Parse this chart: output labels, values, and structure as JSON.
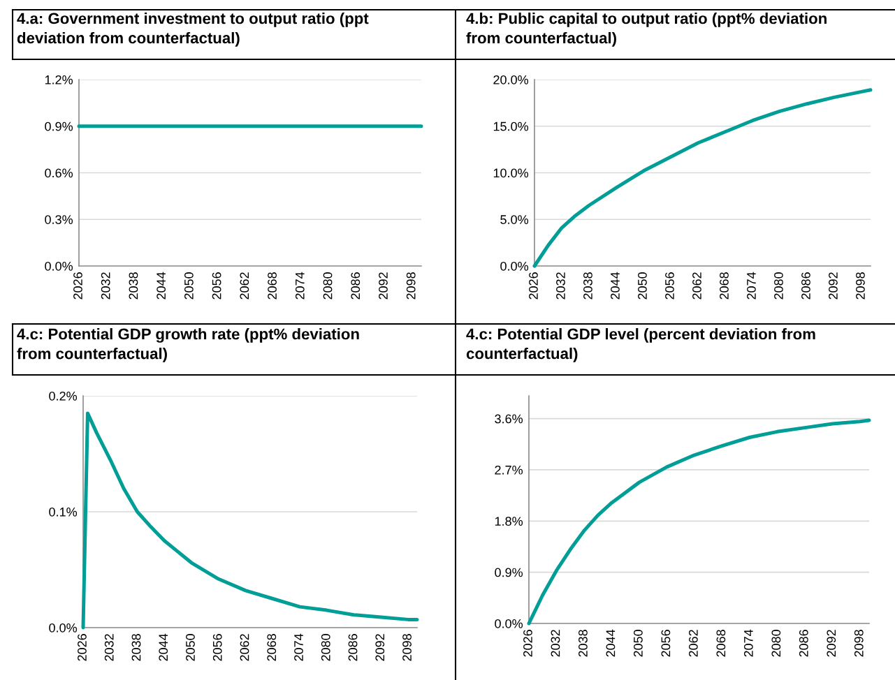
{
  "chart_data": [
    {
      "type": "line",
      "title": "4.a: Government investment to output ratio (ppt\ndeviation from counterfactual)",
      "xlim": [
        2026,
        2100
      ],
      "xticks": [
        2026,
        2032,
        2038,
        2044,
        2050,
        2056,
        2062,
        2068,
        2074,
        2080,
        2086,
        2092,
        2098
      ],
      "ylim": [
        0,
        1.2
      ],
      "yticks": [
        {
          "value": 0,
          "label": "0.0%"
        },
        {
          "value": 0.3,
          "label": "0.3%"
        },
        {
          "value": 0.6,
          "label": "0.6%"
        },
        {
          "value": 0.9,
          "label": "0.9%"
        },
        {
          "value": 1.2,
          "label": "1.2%"
        }
      ],
      "grid": "y",
      "series": [
        {
          "color": "#009e96",
          "x": [
            2026,
            2100
          ],
          "values": [
            0.9,
            0.9
          ]
        }
      ]
    },
    {
      "type": "line",
      "title": "4.b: Public capital to output ratio (ppt% deviation\nfrom counterfactual)",
      "xlim": [
        2026,
        2100
      ],
      "xticks": [
        2026,
        2032,
        2038,
        2044,
        2050,
        2056,
        2062,
        2068,
        2074,
        2080,
        2086,
        2092,
        2098
      ],
      "ylim": [
        0,
        20
      ],
      "yticks": [
        {
          "value": 0,
          "label": "0.0%"
        },
        {
          "value": 5,
          "label": "5.0%"
        },
        {
          "value": 10,
          "label": "10.0%"
        },
        {
          "value": 15,
          "label": "15.0%"
        },
        {
          "value": 20,
          "label": "20.0%"
        }
      ],
      "grid": "y",
      "series": [
        {
          "color": "#009e96",
          "x": [
            2026,
            2029,
            2032,
            2035,
            2038,
            2044,
            2050,
            2056,
            2062,
            2068,
            2074,
            2080,
            2086,
            2092,
            2098,
            2100
          ],
          "values": [
            0,
            2.2,
            4.1,
            5.4,
            6.5,
            8.4,
            10.2,
            11.7,
            13.2,
            14.4,
            15.6,
            16.6,
            17.4,
            18.1,
            18.7,
            18.9
          ]
        }
      ]
    },
    {
      "type": "line",
      "title": "4.c: Potential GDP growth rate (ppt% deviation\nfrom counterfactual)",
      "xlim": [
        2026,
        2100
      ],
      "xticks": [
        2026,
        2032,
        2038,
        2044,
        2050,
        2056,
        2062,
        2068,
        2074,
        2080,
        2086,
        2092,
        2098
      ],
      "ylim": [
        0,
        0.2
      ],
      "yticks": [
        {
          "value": 0,
          "label": "0.0%"
        },
        {
          "value": 0.1,
          "label": "0.1%"
        },
        {
          "value": 0.2,
          "label": "0.2%"
        }
      ],
      "grid": "y",
      "series": [
        {
          "color": "#009e96",
          "x": [
            2026,
            2027,
            2029,
            2032,
            2035,
            2038,
            2041,
            2044,
            2050,
            2056,
            2062,
            2068,
            2074,
            2080,
            2086,
            2092,
            2098,
            2100
          ],
          "values": [
            0,
            0.185,
            0.168,
            0.145,
            0.12,
            0.1,
            0.087,
            0.075,
            0.056,
            0.042,
            0.032,
            0.025,
            0.018,
            0.015,
            0.011,
            0.009,
            0.007,
            0.007
          ]
        }
      ]
    },
    {
      "type": "line",
      "title": "4.c: Potential GDP level (percent deviation from\ncounterfactual)",
      "xlim": [
        2026,
        2100
      ],
      "xticks": [
        2026,
        2032,
        2038,
        2044,
        2050,
        2056,
        2062,
        2068,
        2074,
        2080,
        2086,
        2092,
        2098
      ],
      "ylim": [
        0,
        4.0
      ],
      "yticks": [
        {
          "value": 0,
          "label": "0.0%"
        },
        {
          "value": 0.9,
          "label": "0.9%"
        },
        {
          "value": 1.8,
          "label": "1.8%"
        },
        {
          "value": 2.7,
          "label": "2.7%"
        },
        {
          "value": 3.6,
          "label": "3.6%"
        }
      ],
      "grid": "y",
      "series": [
        {
          "color": "#009e96",
          "x": [
            2026,
            2029,
            2032,
            2035,
            2038,
            2041,
            2044,
            2050,
            2056,
            2062,
            2068,
            2074,
            2080,
            2086,
            2092,
            2098,
            2100
          ],
          "values": [
            0,
            0.5,
            0.93,
            1.3,
            1.63,
            1.9,
            2.12,
            2.48,
            2.75,
            2.96,
            3.12,
            3.27,
            3.37,
            3.44,
            3.51,
            3.55,
            3.57
          ]
        }
      ]
    }
  ]
}
